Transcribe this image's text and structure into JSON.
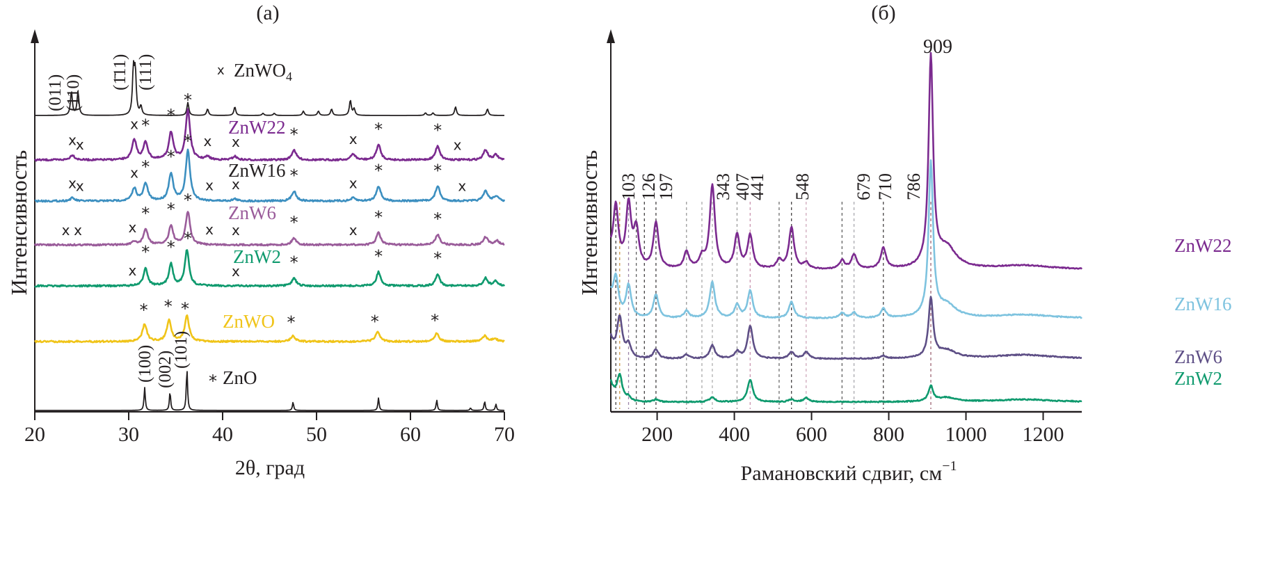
{
  "chart_data": [
    {
      "type": "line",
      "panel_label": "(a)",
      "title": "(a)",
      "xlabel": "2θ, град",
      "ylabel": "Интенсивность",
      "xlim": [
        20,
        70
      ],
      "xticks": [
        20,
        30,
        40,
        50,
        60,
        70
      ],
      "grid": false,
      "legend": {
        "zno4_marker": "x",
        "zno4_label": "ZnWO",
        "zno4_sub": "4",
        "zno_marker": "*",
        "zno_label": "ZnO"
      },
      "series": [
        {
          "name": "ZnWO4",
          "label": "",
          "color": "#231f20",
          "peaks": [
            [
              23.9,
              0.55
            ],
            [
              24.6,
              0.55
            ],
            [
              30.5,
              1.0
            ],
            [
              30.7,
              0.95
            ],
            [
              31.3,
              0.2
            ],
            [
              36.3,
              0.3
            ],
            [
              38.4,
              0.15
            ],
            [
              41.3,
              0.2
            ],
            [
              44.3,
              0.05
            ],
            [
              45.5,
              0.05
            ],
            [
              48.6,
              0.1
            ],
            [
              50.2,
              0.1
            ],
            [
              51.6,
              0.15
            ],
            [
              53.6,
              0.35
            ],
            [
              54.0,
              0.15
            ],
            [
              61.6,
              0.06
            ],
            [
              62.4,
              0.06
            ],
            [
              64.8,
              0.2
            ],
            [
              68.2,
              0.15
            ]
          ],
          "hkl_labels": [
            "(011)",
            "(110)",
            "(1̄11)",
            "(111)"
          ]
        },
        {
          "name": "ZnW22",
          "label": "ZnW22",
          "color": "#7b2a8f",
          "peaks": [
            [
              24.0,
              0.1
            ],
            [
              30.6,
              0.4
            ],
            [
              31.8,
              0.35
            ],
            [
              34.5,
              0.55
            ],
            [
              36.3,
              1.0
            ],
            [
              38.4,
              0.06
            ],
            [
              41.3,
              0.07
            ],
            [
              47.6,
              0.2
            ],
            [
              53.9,
              0.12
            ],
            [
              56.6,
              0.3
            ],
            [
              62.9,
              0.28
            ],
            [
              68.0,
              0.2
            ],
            [
              69.1,
              0.1
            ]
          ],
          "markers": [
            {
              "x": 24.0,
              "sym": "x"
            },
            {
              "x": 24.8,
              "sym": "x"
            },
            {
              "x": 30.6,
              "sym": "x"
            },
            {
              "x": 31.8,
              "sym": "*"
            },
            {
              "x": 34.5,
              "sym": "*"
            },
            {
              "x": 36.3,
              "sym": "*"
            },
            {
              "x": 38.4,
              "sym": "x"
            },
            {
              "x": 41.4,
              "sym": "x"
            },
            {
              "x": 47.6,
              "sym": "*"
            },
            {
              "x": 53.9,
              "sym": "x"
            },
            {
              "x": 56.6,
              "sym": "*"
            },
            {
              "x": 62.9,
              "sym": "*"
            },
            {
              "x": 65.0,
              "sym": "x"
            }
          ]
        },
        {
          "name": "ZnW16",
          "label": "ZnW16",
          "color": "#3c8fc0",
          "peaks": [
            [
              24.0,
              0.06
            ],
            [
              30.6,
              0.25
            ],
            [
              31.8,
              0.35
            ],
            [
              34.5,
              0.55
            ],
            [
              36.3,
              1.0
            ],
            [
              41.3,
              0.04
            ],
            [
              47.6,
              0.2
            ],
            [
              53.9,
              0.06
            ],
            [
              56.6,
              0.3
            ],
            [
              62.9,
              0.3
            ],
            [
              68.0,
              0.2
            ],
            [
              69.1,
              0.1
            ]
          ],
          "markers": [
            {
              "x": 24.0,
              "sym": "x"
            },
            {
              "x": 24.8,
              "sym": "x"
            },
            {
              "x": 30.6,
              "sym": "x"
            },
            {
              "x": 31.8,
              "sym": "*"
            },
            {
              "x": 34.5,
              "sym": "*"
            },
            {
              "x": 36.3,
              "sym": "*"
            },
            {
              "x": 38.6,
              "sym": "x"
            },
            {
              "x": 41.4,
              "sym": "x"
            },
            {
              "x": 47.6,
              "sym": "*"
            },
            {
              "x": 53.9,
              "sym": "x"
            },
            {
              "x": 56.6,
              "sym": "*"
            },
            {
              "x": 62.9,
              "sym": "*"
            },
            {
              "x": 65.5,
              "sym": "x"
            }
          ]
        },
        {
          "name": "ZnW6",
          "label": "ZnW6",
          "color": "#9a5c9a",
          "peaks": [
            [
              30.6,
              0.08
            ],
            [
              31.8,
              0.45
            ],
            [
              34.5,
              0.55
            ],
            [
              36.3,
              0.95
            ],
            [
              47.6,
              0.2
            ],
            [
              56.6,
              0.35
            ],
            [
              62.9,
              0.3
            ],
            [
              68.0,
              0.22
            ],
            [
              69.2,
              0.12
            ]
          ],
          "markers": [
            {
              "x": 23.3,
              "sym": "x"
            },
            {
              "x": 24.6,
              "sym": "x"
            },
            {
              "x": 30.4,
              "sym": "x"
            },
            {
              "x": 31.8,
              "sym": "*"
            },
            {
              "x": 34.5,
              "sym": "*"
            },
            {
              "x": 36.3,
              "sym": "*"
            },
            {
              "x": 38.6,
              "sym": "x"
            },
            {
              "x": 41.4,
              "sym": "x"
            },
            {
              "x": 47.6,
              "sym": "*"
            },
            {
              "x": 53.9,
              "sym": "x"
            },
            {
              "x": 56.6,
              "sym": "*"
            },
            {
              "x": 62.9,
              "sym": "*"
            }
          ]
        },
        {
          "name": "ZnW2",
          "label": "ZnW2",
          "color": "#0f9a6e",
          "peaks": [
            [
              31.8,
              0.45
            ],
            [
              34.5,
              0.55
            ],
            [
              36.2,
              0.9
            ],
            [
              47.6,
              0.2
            ],
            [
              56.6,
              0.35
            ],
            [
              62.9,
              0.3
            ],
            [
              68.0,
              0.2
            ],
            [
              69.1,
              0.12
            ]
          ],
          "markers": [
            {
              "x": 30.4,
              "sym": "x"
            },
            {
              "x": 31.8,
              "sym": "*"
            },
            {
              "x": 34.5,
              "sym": "*"
            },
            {
              "x": 36.3,
              "sym": "*"
            },
            {
              "x": 41.4,
              "sym": "x"
            },
            {
              "x": 47.6,
              "sym": "*"
            },
            {
              "x": 56.6,
              "sym": "*"
            },
            {
              "x": 62.9,
              "sym": "*"
            }
          ]
        },
        {
          "name": "ZnWO",
          "label": "ZnWO",
          "color": "#f0c419",
          "peaks": [
            [
              31.7,
              0.45
            ],
            [
              34.3,
              0.55
            ],
            [
              36.2,
              0.65
            ],
            [
              47.5,
              0.15
            ],
            [
              56.5,
              0.25
            ],
            [
              62.8,
              0.22
            ],
            [
              67.9,
              0.15
            ],
            [
              69.0,
              0.08
            ]
          ],
          "markers": [
            {
              "x": 31.6,
              "sym": "*"
            },
            {
              "x": 34.2,
              "sym": "*"
            },
            {
              "x": 36.0,
              "sym": "*"
            },
            {
              "x": 47.3,
              "sym": "*"
            },
            {
              "x": 56.2,
              "sym": "*"
            },
            {
              "x": 62.6,
              "sym": "*"
            }
          ]
        },
        {
          "name": "ZnO",
          "label": "",
          "color": "#231f20",
          "peaks": [
            [
              31.7,
              0.55
            ],
            [
              34.4,
              0.45
            ],
            [
              36.2,
              1.0
            ],
            [
              47.5,
              0.2
            ],
            [
              56.6,
              0.3
            ],
            [
              62.8,
              0.25
            ],
            [
              66.4,
              0.06
            ],
            [
              67.9,
              0.22
            ],
            [
              69.1,
              0.15
            ]
          ],
          "hkl_labels": [
            "(100)",
            "(002)",
            "(101)"
          ]
        }
      ]
    },
    {
      "type": "line",
      "panel_label": "(б)",
      "title": "(б)",
      "xlabel": "Рамановский сдвиг, см",
      "xlabel_sup": "−1",
      "ylabel": "Интенсивность",
      "xlim": [
        80,
        1300
      ],
      "xticks": [
        200,
        400,
        600,
        800,
        1000,
        1200
      ],
      "grid": false,
      "peak_labels": [
        "103",
        "126",
        "197",
        "343",
        "407",
        "441",
        "548",
        "679",
        "710",
        "786",
        "909"
      ],
      "reference_lines": [
        93,
        103,
        126,
        146,
        167,
        197,
        276,
        316,
        343,
        407,
        441,
        516,
        548,
        586,
        679,
        710,
        786,
        909
      ],
      "series": [
        {
          "name": "ZnW22",
          "label": "ZnW22",
          "color": "#7b2a8f",
          "peaks": [
            [
              93,
              0.28
            ],
            [
              126,
              0.3
            ],
            [
              146,
              0.18
            ],
            [
              197,
              0.22
            ],
            [
              276,
              0.08
            ],
            [
              316,
              0.05
            ],
            [
              343,
              0.4
            ],
            [
              407,
              0.16
            ],
            [
              441,
              0.16
            ],
            [
              516,
              0.04
            ],
            [
              548,
              0.2
            ],
            [
              586,
              0.03
            ],
            [
              679,
              0.04
            ],
            [
              710,
              0.07
            ],
            [
              786,
              0.1
            ],
            [
              909,
              1.0
            ],
            [
              950,
              0.1
            ],
            [
              1150,
              0.02
            ]
          ]
        },
        {
          "name": "ZnW16",
          "label": "ZnW16",
          "color": "#7ec3df",
          "peaks": [
            [
              93,
              0.2
            ],
            [
              126,
              0.18
            ],
            [
              197,
              0.13
            ],
            [
              276,
              0.04
            ],
            [
              343,
              0.2
            ],
            [
              407,
              0.07
            ],
            [
              441,
              0.15
            ],
            [
              548,
              0.09
            ],
            [
              679,
              0.03
            ],
            [
              710,
              0.03
            ],
            [
              786,
              0.05
            ],
            [
              909,
              0.85
            ],
            [
              950,
              0.07
            ],
            [
              1150,
              0.02
            ]
          ]
        },
        {
          "name": "ZnW6",
          "label": "ZnW6",
          "color": "#5e4f86",
          "peaks": [
            [
              103,
              0.3
            ],
            [
              126,
              0.1
            ],
            [
              197,
              0.07
            ],
            [
              276,
              0.03
            ],
            [
              343,
              0.1
            ],
            [
              407,
              0.05
            ],
            [
              441,
              0.25
            ],
            [
              548,
              0.05
            ],
            [
              586,
              0.05
            ],
            [
              786,
              0.02
            ],
            [
              909,
              0.45
            ],
            [
              950,
              0.06
            ],
            [
              1150,
              0.03
            ]
          ]
        },
        {
          "name": "ZnW2",
          "label": "ZnW2",
          "color": "#0f9a6e",
          "peaks": [
            [
              103,
              0.3
            ],
            [
              126,
              0.05
            ],
            [
              197,
              0.03
            ],
            [
              343,
              0.06
            ],
            [
              441,
              0.27
            ],
            [
              548,
              0.03
            ],
            [
              586,
              0.05
            ],
            [
              909,
              0.18
            ],
            [
              950,
              0.05
            ],
            [
              1150,
              0.03
            ]
          ]
        }
      ],
      "peak_annotation_top": "909"
    }
  ]
}
